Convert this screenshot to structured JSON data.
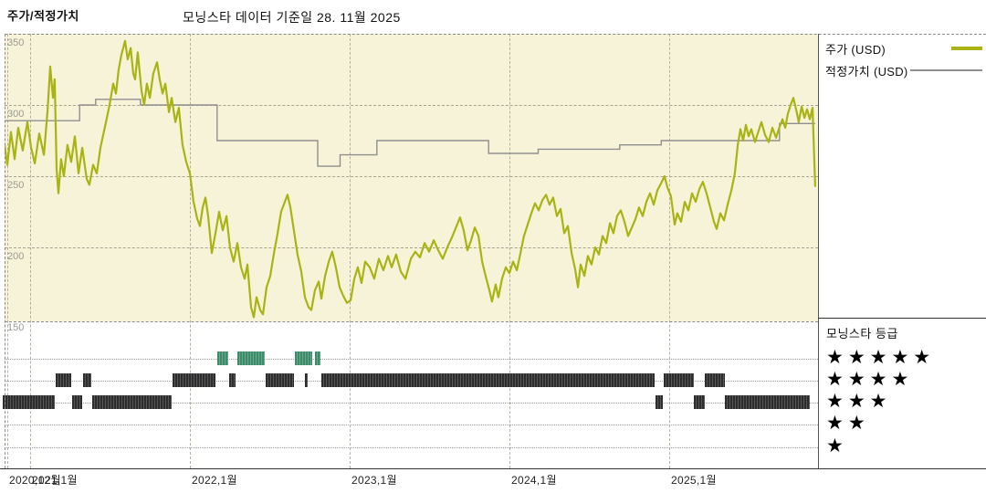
{
  "header": {
    "title": "주가/적정가치",
    "subtitle": "모닝스타 데이터 기준일 28. 11월 2025"
  },
  "legend": {
    "price_label": "주가 (USD)",
    "fair_value_label": "적정가치 (USD)"
  },
  "rating_legend": {
    "title": "모닝스타 등급",
    "star_char": "★",
    "rows": [
      5,
      4,
      3,
      2,
      1
    ]
  },
  "colors": {
    "price": "#a9b313",
    "fair_value": "#8f8f8f",
    "five_star": "#3c8c6a",
    "rating_dark": "#2d2d2d",
    "plot_bg": "#f7f3d8",
    "grid": "#a8a393"
  },
  "chart_data": {
    "type": "line",
    "title": "주가/적정가치",
    "subtitle": "모닝스타 데이터 기준일 28. 11월 2025",
    "y_axis": {
      "ticks": [
        350,
        300,
        250,
        200,
        150
      ],
      "range": [
        150,
        355
      ]
    },
    "x_axis": {
      "ticks": [
        {
          "t": 2020.857,
          "label": "2020,12월"
        },
        {
          "t": 2021.0,
          "label": "2021,1월"
        },
        {
          "t": 2022.0,
          "label": "2022,1월"
        },
        {
          "t": 2023.0,
          "label": "2023,1월"
        },
        {
          "t": 2024.0,
          "label": "2024,1월"
        },
        {
          "t": 2025.0,
          "label": "2025,1월"
        }
      ],
      "range": [
        2020.84,
        2025.92
      ]
    },
    "series": [
      {
        "name": "주가 (USD)",
        "color_key": "price",
        "step": false,
        "points": [
          [
            2020.84,
            272
          ],
          [
            2020.857,
            258
          ],
          [
            2020.88,
            281
          ],
          [
            2020.903,
            262
          ],
          [
            2020.926,
            284
          ],
          [
            2020.954,
            268
          ],
          [
            2020.983,
            288
          ],
          [
            2021.006,
            270
          ],
          [
            2021.029,
            259
          ],
          [
            2021.057,
            280
          ],
          [
            2021.086,
            265
          ],
          [
            2021.109,
            296
          ],
          [
            2021.126,
            327
          ],
          [
            2021.143,
            305
          ],
          [
            2021.154,
            318
          ],
          [
            2021.166,
            255
          ],
          [
            2021.177,
            238
          ],
          [
            2021.194,
            262
          ],
          [
            2021.211,
            250
          ],
          [
            2021.234,
            272
          ],
          [
            2021.257,
            260
          ],
          [
            2021.28,
            278
          ],
          [
            2021.303,
            252
          ],
          [
            2021.326,
            270
          ],
          [
            2021.354,
            248
          ],
          [
            2021.371,
            244
          ],
          [
            2021.394,
            258
          ],
          [
            2021.417,
            252
          ],
          [
            2021.44,
            270
          ],
          [
            2021.469,
            285
          ],
          [
            2021.497,
            300
          ],
          [
            2021.52,
            315
          ],
          [
            2021.537,
            308
          ],
          [
            2021.554,
            325
          ],
          [
            2021.571,
            335
          ],
          [
            2021.594,
            345
          ],
          [
            2021.611,
            332
          ],
          [
            2021.629,
            340
          ],
          [
            2021.646,
            322
          ],
          [
            2021.657,
            318
          ],
          [
            2021.674,
            337
          ],
          [
            2021.697,
            310
          ],
          [
            2021.714,
            300
          ],
          [
            2021.731,
            315
          ],
          [
            2021.749,
            305
          ],
          [
            2021.771,
            322
          ],
          [
            2021.794,
            330
          ],
          [
            2021.811,
            318
          ],
          [
            2021.829,
            308
          ],
          [
            2021.846,
            315
          ],
          [
            2021.869,
            295
          ],
          [
            2021.886,
            305
          ],
          [
            2021.909,
            288
          ],
          [
            2021.931,
            298
          ],
          [
            2021.954,
            272
          ],
          [
            2021.977,
            260
          ],
          [
            2022.0,
            252
          ],
          [
            2022.023,
            232
          ],
          [
            2022.046,
            220
          ],
          [
            2022.063,
            215
          ],
          [
            2022.08,
            228
          ],
          [
            2022.097,
            235
          ],
          [
            2022.114,
            222
          ],
          [
            2022.137,
            196
          ],
          [
            2022.16,
            210
          ],
          [
            2022.183,
            225
          ],
          [
            2022.206,
            212
          ],
          [
            2022.229,
            222
          ],
          [
            2022.251,
            200
          ],
          [
            2022.274,
            190
          ],
          [
            2022.297,
            203
          ],
          [
            2022.32,
            186
          ],
          [
            2022.343,
            178
          ],
          [
            2022.36,
            188
          ],
          [
            2022.383,
            158
          ],
          [
            2022.4,
            151
          ],
          [
            2022.417,
            165
          ],
          [
            2022.44,
            156
          ],
          [
            2022.457,
            153
          ],
          [
            2022.48,
            172
          ],
          [
            2022.503,
            180
          ],
          [
            2022.526,
            196
          ],
          [
            2022.549,
            210
          ],
          [
            2022.571,
            225
          ],
          [
            2022.594,
            232
          ],
          [
            2022.611,
            237
          ],
          [
            2022.629,
            228
          ],
          [
            2022.651,
            212
          ],
          [
            2022.674,
            195
          ],
          [
            2022.697,
            183
          ],
          [
            2022.72,
            165
          ],
          [
            2022.743,
            158
          ],
          [
            2022.76,
            156
          ],
          [
            2022.783,
            170
          ],
          [
            2022.806,
            176
          ],
          [
            2022.823,
            164
          ],
          [
            2022.846,
            180
          ],
          [
            2022.869,
            190
          ],
          [
            2022.891,
            197
          ],
          [
            2022.914,
            186
          ],
          [
            2022.937,
            172
          ],
          [
            2022.96,
            166
          ],
          [
            2022.983,
            161
          ],
          [
            2023.006,
            163
          ],
          [
            2023.029,
            178
          ],
          [
            2023.051,
            186
          ],
          [
            2023.074,
            175
          ],
          [
            2023.097,
            190
          ],
          [
            2023.126,
            186
          ],
          [
            2023.154,
            178
          ],
          [
            2023.183,
            192
          ],
          [
            2023.211,
            184
          ],
          [
            2023.24,
            194
          ],
          [
            2023.263,
            186
          ],
          [
            2023.291,
            195
          ],
          [
            2023.32,
            183
          ],
          [
            2023.349,
            178
          ],
          [
            2023.383,
            192
          ],
          [
            2023.411,
            197
          ],
          [
            2023.44,
            193
          ],
          [
            2023.469,
            203
          ],
          [
            2023.497,
            197
          ],
          [
            2023.526,
            205
          ],
          [
            2023.554,
            198
          ],
          [
            2023.583,
            192
          ],
          [
            2023.611,
            200
          ],
          [
            2023.64,
            207
          ],
          [
            2023.669,
            215
          ],
          [
            2023.691,
            221
          ],
          [
            2023.714,
            212
          ],
          [
            2023.737,
            198
          ],
          [
            2023.76,
            205
          ],
          [
            2023.783,
            214
          ],
          [
            2023.806,
            208
          ],
          [
            2023.829,
            190
          ],
          [
            2023.851,
            180
          ],
          [
            2023.874,
            170
          ],
          [
            2023.891,
            162
          ],
          [
            2023.914,
            174
          ],
          [
            2023.931,
            165
          ],
          [
            2023.954,
            178
          ],
          [
            2023.977,
            186
          ],
          [
            2024.0,
            182
          ],
          [
            2024.023,
            190
          ],
          [
            2024.046,
            184
          ],
          [
            2024.069,
            196
          ],
          [
            2024.091,
            208
          ],
          [
            2024.114,
            216
          ],
          [
            2024.137,
            224
          ],
          [
            2024.16,
            231
          ],
          [
            2024.183,
            226
          ],
          [
            2024.206,
            233
          ],
          [
            2024.229,
            237
          ],
          [
            2024.251,
            230
          ],
          [
            2024.274,
            235
          ],
          [
            2024.297,
            222
          ],
          [
            2024.32,
            227
          ],
          [
            2024.343,
            210
          ],
          [
            2024.366,
            215
          ],
          [
            2024.389,
            196
          ],
          [
            2024.411,
            185
          ],
          [
            2024.429,
            172
          ],
          [
            2024.446,
            188
          ],
          [
            2024.469,
            180
          ],
          [
            2024.491,
            194
          ],
          [
            2024.514,
            188
          ],
          [
            2024.537,
            200
          ],
          [
            2024.56,
            195
          ],
          [
            2024.583,
            208
          ],
          [
            2024.606,
            203
          ],
          [
            2024.629,
            217
          ],
          [
            2024.651,
            210
          ],
          [
            2024.674,
            222
          ],
          [
            2024.697,
            226
          ],
          [
            2024.72,
            218
          ],
          [
            2024.743,
            208
          ],
          [
            2024.766,
            214
          ],
          [
            2024.789,
            220
          ],
          [
            2024.811,
            228
          ],
          [
            2024.834,
            222
          ],
          [
            2024.857,
            232
          ],
          [
            2024.88,
            238
          ],
          [
            2024.903,
            230
          ],
          [
            2024.926,
            240
          ],
          [
            2024.949,
            245
          ],
          [
            2024.971,
            250
          ],
          [
            2024.989,
            242
          ],
          [
            2025.011,
            236
          ],
          [
            2025.034,
            216
          ],
          [
            2025.051,
            224
          ],
          [
            2025.074,
            218
          ],
          [
            2025.097,
            232
          ],
          [
            2025.12,
            226
          ],
          [
            2025.143,
            238
          ],
          [
            2025.166,
            232
          ],
          [
            2025.189,
            241
          ],
          [
            2025.211,
            246
          ],
          [
            2025.234,
            238
          ],
          [
            2025.257,
            228
          ],
          [
            2025.28,
            218
          ],
          [
            2025.297,
            213
          ],
          [
            2025.32,
            224
          ],
          [
            2025.343,
            219
          ],
          [
            2025.366,
            230
          ],
          [
            2025.389,
            240
          ],
          [
            2025.411,
            252
          ],
          [
            2025.429,
            272
          ],
          [
            2025.446,
            283
          ],
          [
            2025.463,
            275
          ],
          [
            2025.48,
            286
          ],
          [
            2025.497,
            278
          ],
          [
            2025.514,
            283
          ],
          [
            2025.537,
            274
          ],
          [
            2025.554,
            280
          ],
          [
            2025.577,
            288
          ],
          [
            2025.6,
            279
          ],
          [
            2025.623,
            274
          ],
          [
            2025.646,
            284
          ],
          [
            2025.669,
            277
          ],
          [
            2025.686,
            283
          ],
          [
            2025.709,
            290
          ],
          [
            2025.726,
            284
          ],
          [
            2025.743,
            294
          ],
          [
            2025.76,
            300
          ],
          [
            2025.777,
            305
          ],
          [
            2025.794,
            297
          ],
          [
            2025.811,
            288
          ],
          [
            2025.829,
            299
          ],
          [
            2025.846,
            291
          ],
          [
            2025.863,
            297
          ],
          [
            2025.88,
            290
          ],
          [
            2025.897,
            298
          ],
          [
            2025.914,
            243
          ]
        ]
      },
      {
        "name": "적정가치 (USD)",
        "color_key": "fair_value",
        "step": true,
        "points": [
          [
            2020.84,
            289
          ],
          [
            2021.31,
            300
          ],
          [
            2021.41,
            304
          ],
          [
            2021.69,
            300
          ],
          [
            2022.17,
            275
          ],
          [
            2022.8,
            257
          ],
          [
            2022.94,
            265
          ],
          [
            2023.17,
            275
          ],
          [
            2023.87,
            266
          ],
          [
            2024.18,
            269
          ],
          [
            2024.69,
            272
          ],
          [
            2024.95,
            275
          ],
          [
            2025.69,
            287
          ],
          [
            2025.914,
            287
          ]
        ]
      }
    ],
    "ratings": {
      "five_star": [
        [
          2022.171,
          2022.24
        ],
        [
          2022.297,
          2022.469
        ],
        [
          2022.657,
          2022.766
        ],
        [
          2022.783,
          2022.817
        ]
      ],
      "four_star": [
        [
          2021.16,
          2021.257
        ],
        [
          2021.331,
          2021.383
        ],
        [
          2021.891,
          2022.16
        ],
        [
          2022.246,
          2022.286
        ],
        [
          2022.474,
          2022.651
        ],
        [
          2022.72,
          2022.737
        ],
        [
          2022.823,
          2024.909
        ],
        [
          2024.966,
          2025.154
        ],
        [
          2025.223,
          2025.349
        ]
      ],
      "three_star": [
        [
          2020.829,
          2021.154
        ],
        [
          2021.263,
          2021.326
        ],
        [
          2021.389,
          2021.886
        ],
        [
          2024.914,
          2024.96
        ],
        [
          2025.154,
          2025.223
        ],
        [
          2025.349,
          2025.88
        ]
      ],
      "two_star": [],
      "one_star": []
    }
  }
}
